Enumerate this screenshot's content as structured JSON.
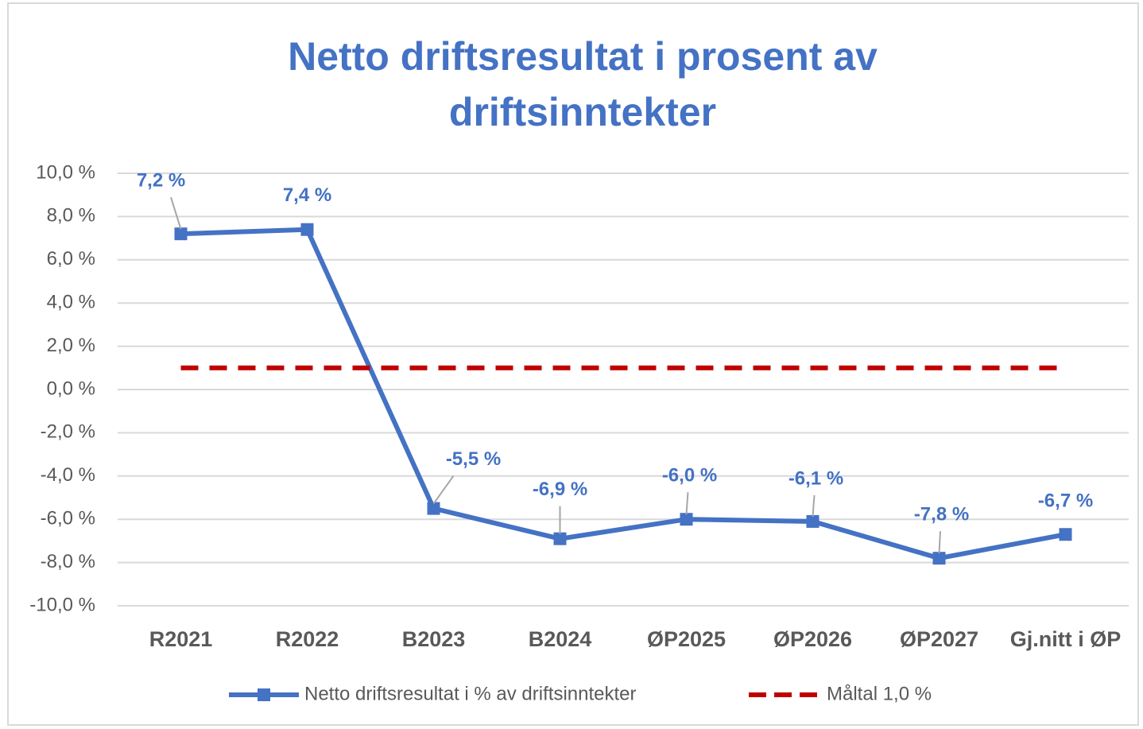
{
  "chart_data": {
    "type": "line",
    "title": "Netto driftsresultat i prosent av driftsinntekter",
    "categories": [
      "R2021",
      "R2022",
      "B2023",
      "B2024",
      "ØP2025",
      "ØP2026",
      "ØP2027",
      "Gj.nitt i ØP"
    ],
    "series": [
      {
        "name": "Netto driftsresultat i % av driftsinntekter",
        "color": "#4472c4",
        "style": "solid",
        "marker": "square",
        "values": [
          7.2,
          7.4,
          -5.5,
          -6.9,
          -6.0,
          -6.1,
          -7.8,
          -6.7
        ],
        "value_labels": [
          "7,2 %",
          "7,4 %",
          "-5,5 %",
          "-6,9 %",
          "-6,0 %",
          "-6,1 %",
          "-7,8 %",
          "-6,7 %"
        ]
      },
      {
        "name": "Måltal 1,0 %",
        "color": "#c00000",
        "style": "dashed",
        "values": [
          1.0,
          1.0,
          1.0,
          1.0,
          1.0,
          1.0,
          1.0,
          1.0
        ]
      }
    ],
    "ylim": [
      -10,
      10
    ],
    "yticks": [
      {
        "value": 10,
        "label": "10,0 %"
      },
      {
        "value": 8,
        "label": "8,0 %"
      },
      {
        "value": 6,
        "label": "6,0 %"
      },
      {
        "value": 4,
        "label": "4,0 %"
      },
      {
        "value": 2,
        "label": "2,0 %"
      },
      {
        "value": 0,
        "label": "0,0 %"
      },
      {
        "value": -2,
        "label": "-2,0 %"
      },
      {
        "value": -4,
        "label": "-4,0 %"
      },
      {
        "value": -6,
        "label": "-6,0 %"
      },
      {
        "value": -8,
        "label": "-8,0 %"
      },
      {
        "value": -10,
        "label": "-10,0 %"
      }
    ],
    "grid": true,
    "legend": "bottom"
  }
}
